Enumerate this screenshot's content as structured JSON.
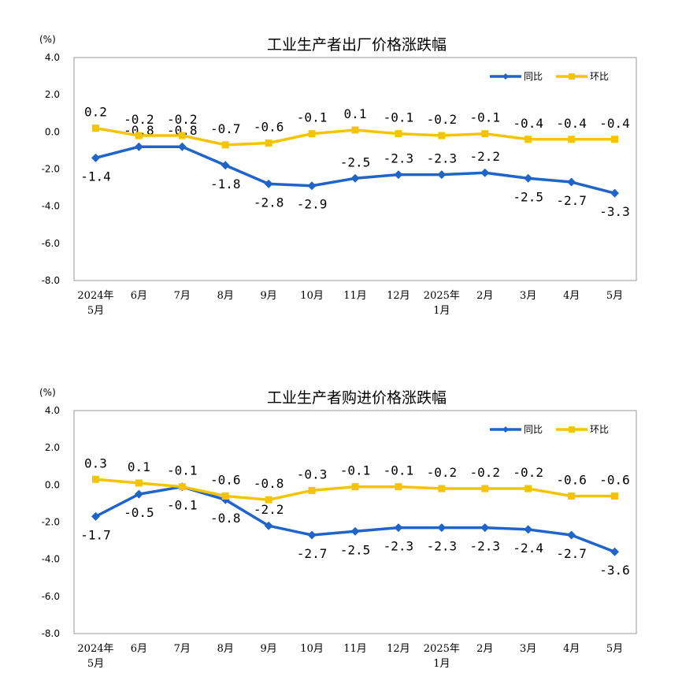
{
  "colors": {
    "yoy": "#1f64c8",
    "mom": "#f5c400",
    "axis": "#999999"
  },
  "chart_data": [
    {
      "type": "line",
      "title": "工业生产者出厂价格涨跌幅",
      "unit": "(%)",
      "categories": [
        [
          "2024年",
          "5月"
        ],
        [
          "6月"
        ],
        [
          "7月"
        ],
        [
          "8月"
        ],
        [
          "9月"
        ],
        [
          "10月"
        ],
        [
          "11月"
        ],
        [
          "12月"
        ],
        [
          "2025年",
          "1月"
        ],
        [
          "2月"
        ],
        [
          "3月"
        ],
        [
          "4月"
        ],
        [
          "5月"
        ]
      ],
      "ylim": [
        -8.0,
        4.0
      ],
      "yticks": [
        "4.0",
        "2.0",
        "0.0",
        "-2.0",
        "-4.0",
        "-6.0",
        "-8.0"
      ],
      "legend_position": "top-right",
      "series": [
        {
          "name": "同比",
          "key": "yoy",
          "values": [
            -1.4,
            -0.8,
            -0.8,
            -1.8,
            -2.8,
            -2.9,
            -2.5,
            -2.3,
            -2.3,
            -2.2,
            -2.5,
            -2.7,
            -3.3
          ],
          "labels": [
            "-1.4",
            "-0.8",
            "-0.8",
            "-1.8",
            "-2.8",
            "-2.9",
            "-2.5",
            "-2.3",
            "-2.3",
            "-2.2",
            "-2.5",
            "-2.7",
            "-3.3"
          ]
        },
        {
          "name": "环比",
          "key": "mom",
          "values": [
            0.2,
            -0.2,
            -0.2,
            -0.7,
            -0.6,
            -0.1,
            0.1,
            -0.1,
            -0.2,
            -0.1,
            -0.4,
            -0.4,
            -0.4
          ],
          "labels": [
            "0.2",
            "-0.2",
            "-0.2",
            "-0.7",
            "-0.6",
            "-0.1",
            "0.1",
            "-0.1",
            "-0.2",
            "-0.1",
            "-0.4",
            "-0.4",
            "-0.4"
          ]
        }
      ]
    },
    {
      "type": "line",
      "title": "工业生产者购进价格涨跌幅",
      "unit": "(%)",
      "categories": [
        [
          "2024年",
          "5月"
        ],
        [
          "6月"
        ],
        [
          "7月"
        ],
        [
          "8月"
        ],
        [
          "9月"
        ],
        [
          "10月"
        ],
        [
          "11月"
        ],
        [
          "12月"
        ],
        [
          "2025年",
          "1月"
        ],
        [
          "2月"
        ],
        [
          "3月"
        ],
        [
          "4月"
        ],
        [
          "5月"
        ]
      ],
      "ylim": [
        -8.0,
        4.0
      ],
      "yticks": [
        "4.0",
        "2.0",
        "0.0",
        "-2.0",
        "-4.0",
        "-6.0",
        "-8.0"
      ],
      "legend_position": "top-right",
      "series": [
        {
          "name": "同比",
          "key": "yoy",
          "values": [
            -1.7,
            -0.5,
            -0.1,
            -0.8,
            -2.2,
            -2.7,
            -2.5,
            -2.3,
            -2.3,
            -2.3,
            -2.4,
            -2.7,
            -3.6
          ],
          "labels": [
            "-1.7",
            "-0.5",
            "-0.1",
            "-0.8",
            "-2.2",
            "-2.7",
            "-2.5",
            "-2.3",
            "-2.3",
            "-2.3",
            "-2.4",
            "-2.7",
            "-3.6"
          ]
        },
        {
          "name": "环比",
          "key": "mom",
          "values": [
            0.3,
            0.1,
            -0.1,
            -0.6,
            -0.8,
            -0.3,
            -0.1,
            -0.1,
            -0.2,
            -0.2,
            -0.2,
            -0.6,
            -0.6
          ],
          "labels": [
            "0.3",
            "0.1",
            "-0.1",
            "-0.6",
            "-0.8",
            "-0.3",
            "-0.1",
            "-0.1",
            "-0.2",
            "-0.2",
            "-0.2",
            "-0.6",
            "-0.6"
          ]
        }
      ]
    }
  ]
}
